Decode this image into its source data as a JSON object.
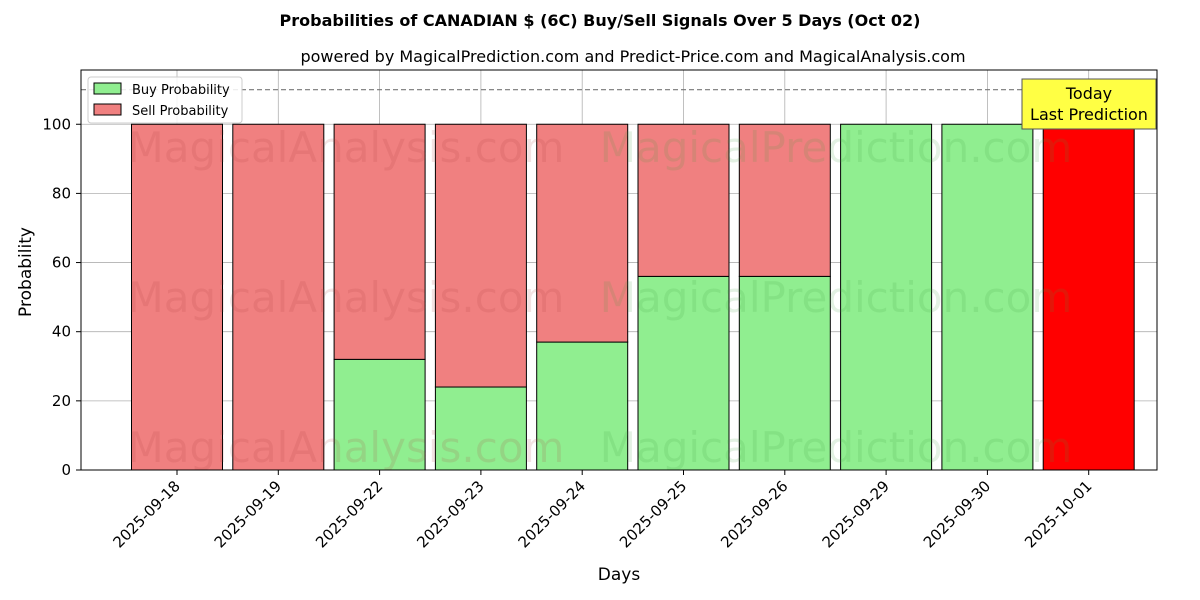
{
  "chart_data": {
    "type": "bar",
    "stacked": true,
    "title": "Probabilities of CANADIAN $ (6C) Buy/Sell Signals Over 5 Days (Oct 02)",
    "subtitle": "powered by MagicalPrediction.com and Predict-Price.com and MagicalAnalysis.com",
    "xlabel": "Days",
    "ylabel": "Probability",
    "ylim": [
      0,
      115
    ],
    "yticks": [
      0,
      20,
      40,
      60,
      80,
      100
    ],
    "grid": true,
    "legend_position": "top-left",
    "reference_line": 110,
    "categories": [
      "2025-09-18",
      "2025-09-19",
      "2025-09-22",
      "2025-09-23",
      "2025-09-24",
      "2025-09-25",
      "2025-09-26",
      "2025-09-29",
      "2025-09-30",
      "2025-10-01"
    ],
    "series": [
      {
        "name": "Buy Probability",
        "color": "#90ee90",
        "values": [
          0,
          0,
          32,
          24,
          37,
          56,
          56,
          100,
          100,
          0
        ]
      },
      {
        "name": "Sell Probability",
        "color": "#f08080",
        "values": [
          100,
          100,
          68,
          76,
          63,
          44,
          44,
          0,
          0,
          100
        ]
      }
    ],
    "highlight": {
      "category": "2025-10-01",
      "color": "#ff0000"
    },
    "annotation": {
      "lines": [
        "Today",
        "Last Prediction"
      ],
      "bg": "#ffff44"
    },
    "watermarks": [
      "MagicalAnalysis.com",
      "MagicalPrediction.com"
    ]
  }
}
